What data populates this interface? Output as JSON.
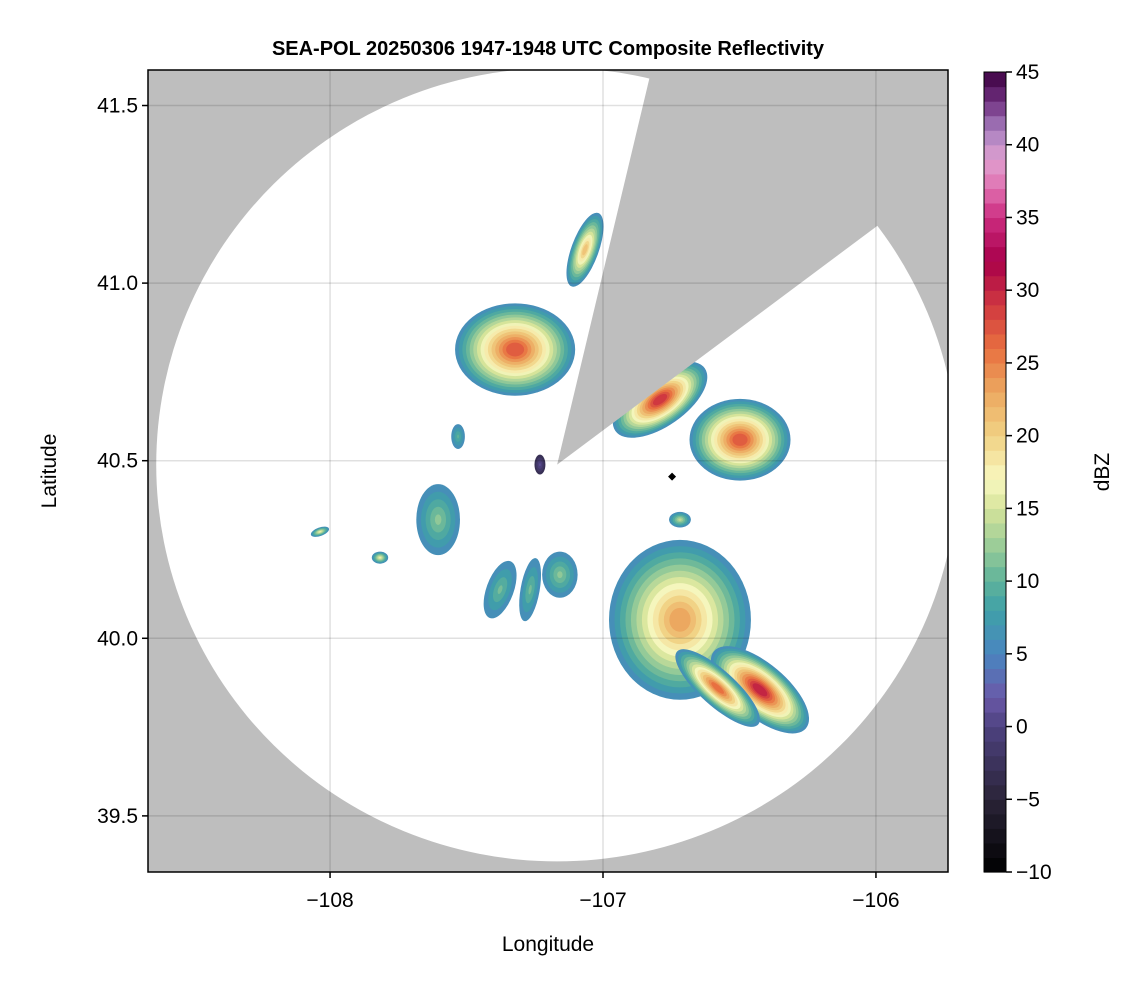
{
  "chart_data": {
    "type": "heatmap",
    "title": "SEA-POL 20250306 1947-1948 UTC Composite Reflectivity",
    "xlabel": "Longitude",
    "ylabel": "Latitude",
    "xlim": [
      -108.667,
      -105.736
    ],
    "ylim": [
      39.342,
      41.6
    ],
    "xticks": [
      -108,
      -107,
      -106
    ],
    "xtick_labels": [
      "−108",
      "−107",
      "−106"
    ],
    "yticks": [
      39.5,
      40.0,
      40.5,
      41.0,
      41.5
    ],
    "ytick_labels": [
      "39.5",
      "40.0",
      "40.5",
      "41.0",
      "41.5"
    ],
    "grid": true,
    "background_color": "#bebebe",
    "radar": {
      "lon": -107.168,
      "lat": 40.489,
      "range_km": 124,
      "blocked_azimuth_deg": [
        13.3,
        53.0
      ]
    },
    "marker": {
      "lon": -106.747,
      "lat": 40.455,
      "symbol": "diamond",
      "color": "#000000"
    },
    "colorbar": {
      "label": "dBZ",
      "range": [
        -10,
        45
      ],
      "bin_width": 1,
      "ticks": [
        -10,
        -5,
        0,
        5,
        10,
        15,
        20,
        25,
        30,
        35,
        40,
        45
      ],
      "tick_labels": [
        "−10",
        "−5",
        "0",
        "5",
        "10",
        "15",
        "20",
        "25",
        "30",
        "35",
        "40",
        "45"
      ],
      "color_stops": [
        [
          -10,
          "#000000"
        ],
        [
          -5,
          "#2a2438"
        ],
        [
          0,
          "#4e4280"
        ],
        [
          2,
          "#6a58a8"
        ],
        [
          5,
          "#4a86c0"
        ],
        [
          8,
          "#3fa0a8"
        ],
        [
          10,
          "#5fb29a"
        ],
        [
          12,
          "#90c898"
        ],
        [
          15,
          "#d6e49a"
        ],
        [
          17,
          "#f8f8c0"
        ],
        [
          20,
          "#f1d284"
        ],
        [
          23,
          "#eca860"
        ],
        [
          26,
          "#e87040"
        ],
        [
          29,
          "#d03840"
        ],
        [
          32,
          "#a8004a"
        ],
        [
          35,
          "#cc2c80"
        ],
        [
          37,
          "#e070b0"
        ],
        [
          39,
          "#e0a0d0"
        ],
        [
          41,
          "#a880c0"
        ],
        [
          43,
          "#703080"
        ],
        [
          45,
          "#3c0040"
        ]
      ]
    },
    "echoes": [
      {
        "lon": -107.322,
        "lat": 40.813,
        "rlon": 0.22,
        "rlat": 0.13,
        "rot": 0,
        "peak_dbz": 27
      },
      {
        "lon": -107.066,
        "lat": 41.094,
        "rlon": 0.05,
        "rlat": 0.11,
        "rot": 20,
        "peak_dbz": 21
      },
      {
        "lon": -106.791,
        "lat": 40.672,
        "rlon": 0.2,
        "rlat": 0.075,
        "rot": -35,
        "peak_dbz": 29
      },
      {
        "lon": -106.498,
        "lat": 40.559,
        "rlon": 0.185,
        "rlat": 0.115,
        "rot": 0,
        "peak_dbz": 27
      },
      {
        "lon": -107.231,
        "lat": 40.489,
        "rlon": 0.02,
        "rlat": 0.028,
        "rot": 0,
        "peak_dbz": 1
      },
      {
        "lon": -107.604,
        "lat": 40.334,
        "rlon": 0.08,
        "rlat": 0.1,
        "rot": 0,
        "peak_dbz": 12
      },
      {
        "lon": -107.531,
        "lat": 40.568,
        "rlon": 0.025,
        "rlat": 0.035,
        "rot": 0,
        "peak_dbz": 10
      },
      {
        "lon": -107.377,
        "lat": 40.137,
        "rlon": 0.05,
        "rlat": 0.085,
        "rot": 20,
        "peak_dbz": 11
      },
      {
        "lon": -107.267,
        "lat": 40.137,
        "rlon": 0.035,
        "rlat": 0.09,
        "rot": 10,
        "peak_dbz": 11
      },
      {
        "lon": -107.158,
        "lat": 40.179,
        "rlon": 0.065,
        "rlat": 0.065,
        "rot": 0,
        "peak_dbz": 12
      },
      {
        "lon": -106.718,
        "lat": 40.052,
        "rlon": 0.26,
        "rlat": 0.225,
        "rot": 0,
        "peak_dbz": 23
      },
      {
        "lon": -106.425,
        "lat": 39.855,
        "rlon": 0.22,
        "rlat": 0.075,
        "rot": 40,
        "peak_dbz": 30
      },
      {
        "lon": -106.58,
        "lat": 39.86,
        "rlon": 0.2,
        "rlat": 0.05,
        "rot": 42,
        "peak_dbz": 26
      },
      {
        "lon": -106.718,
        "lat": 40.334,
        "rlon": 0.04,
        "rlat": 0.022,
        "rot": 0,
        "peak_dbz": 14
      },
      {
        "lon": -107.817,
        "lat": 40.227,
        "rlon": 0.03,
        "rlat": 0.017,
        "rot": 0,
        "peak_dbz": 16
      },
      {
        "lon": -108.037,
        "lat": 40.3,
        "rlon": 0.035,
        "rlat": 0.012,
        "rot": -20,
        "peak_dbz": 16
      }
    ]
  }
}
